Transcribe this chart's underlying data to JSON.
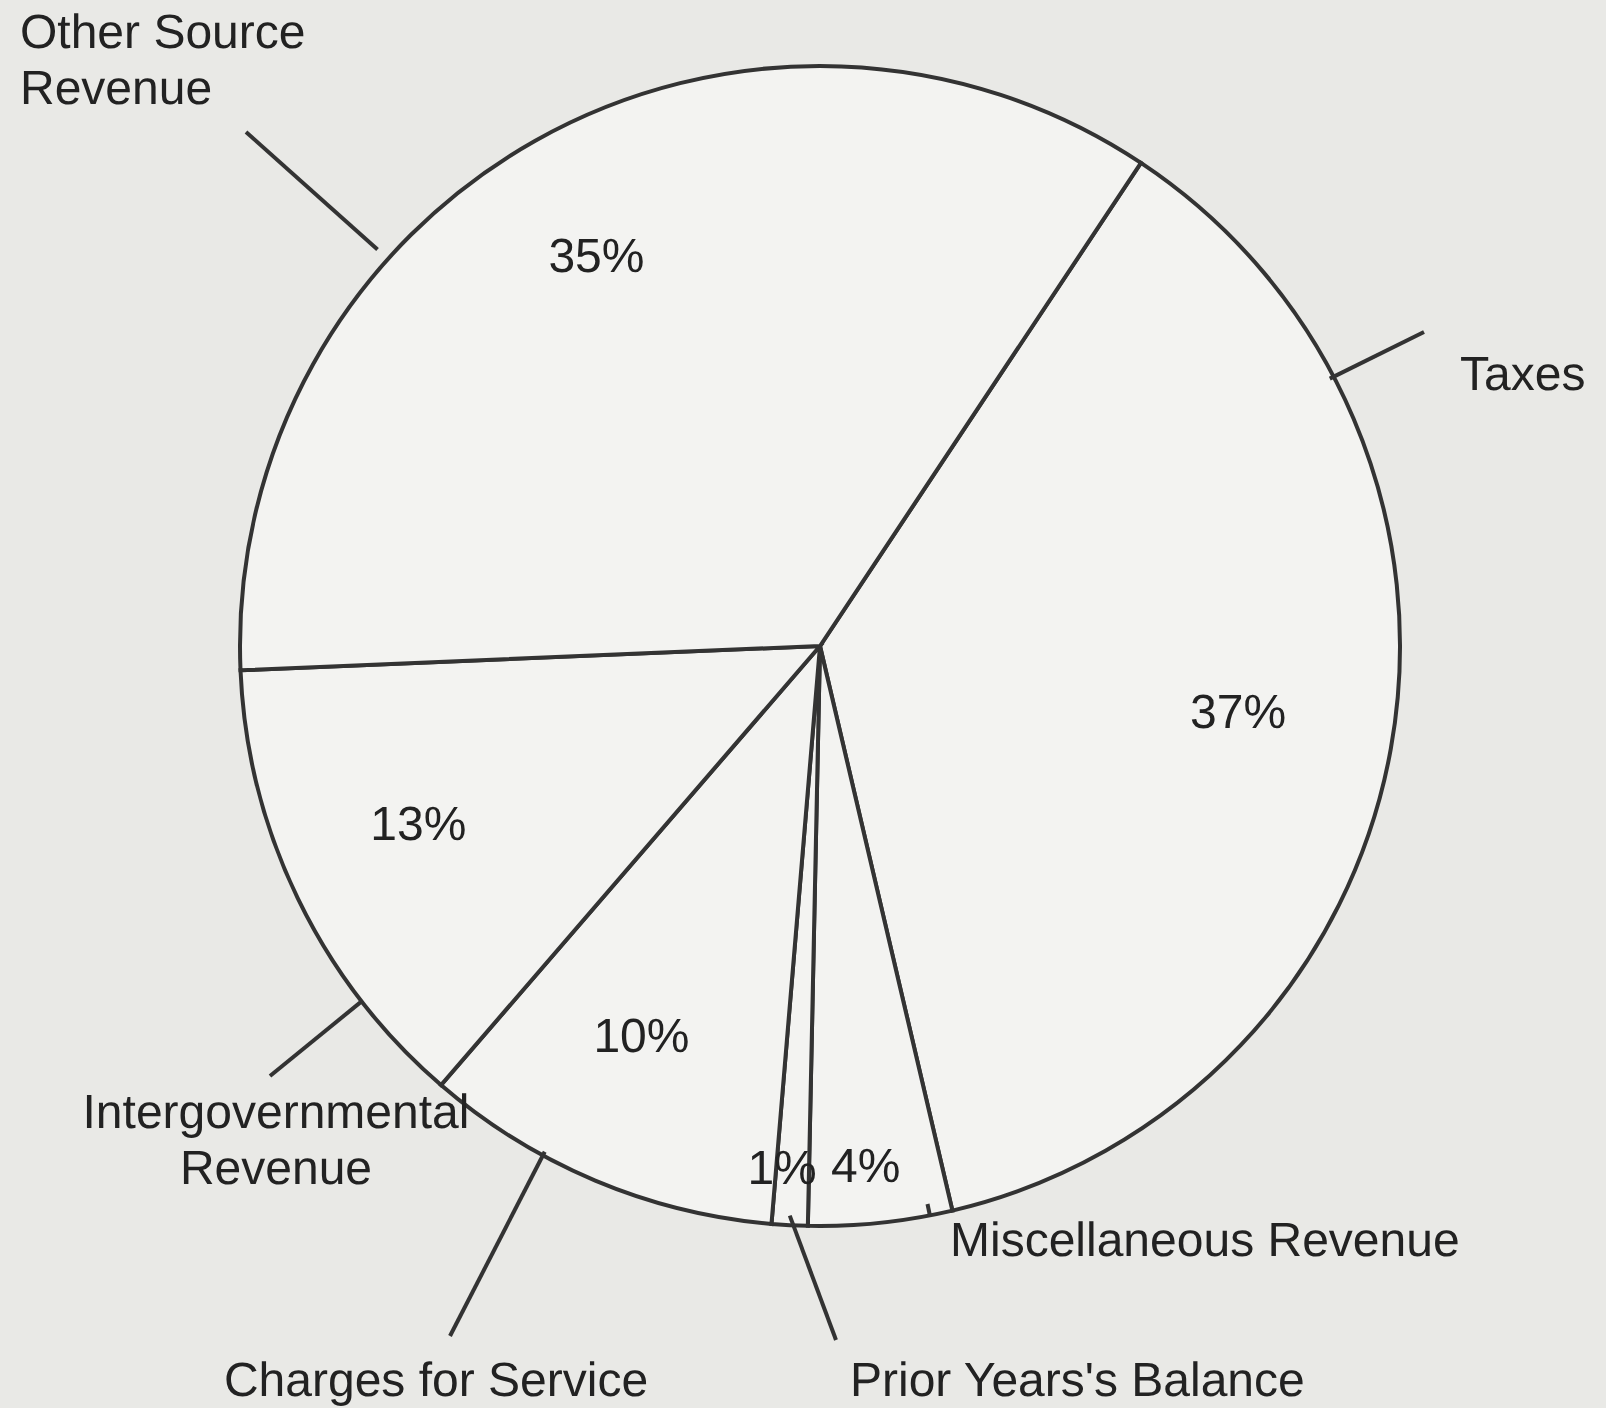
{
  "chart_data": {
    "type": "pie",
    "categories": [
      "Taxes",
      "Miscellaneous Revenue",
      "Prior Years's Balance",
      "Charges for Service",
      "Intergovernmental Revenue",
      "Other Source Revenue"
    ],
    "values": [
      37,
      4,
      1,
      10,
      13,
      35
    ],
    "value_labels": [
      "37%",
      "4%",
      "1%",
      "10%",
      "13%",
      "35%"
    ],
    "colors": [
      "#f3f3f1",
      "#f3f3f1",
      "#f3f3f1",
      "#f3f3f1",
      "#f3f3f1",
      "#f3f3f1"
    ],
    "legend": false
  }
}
